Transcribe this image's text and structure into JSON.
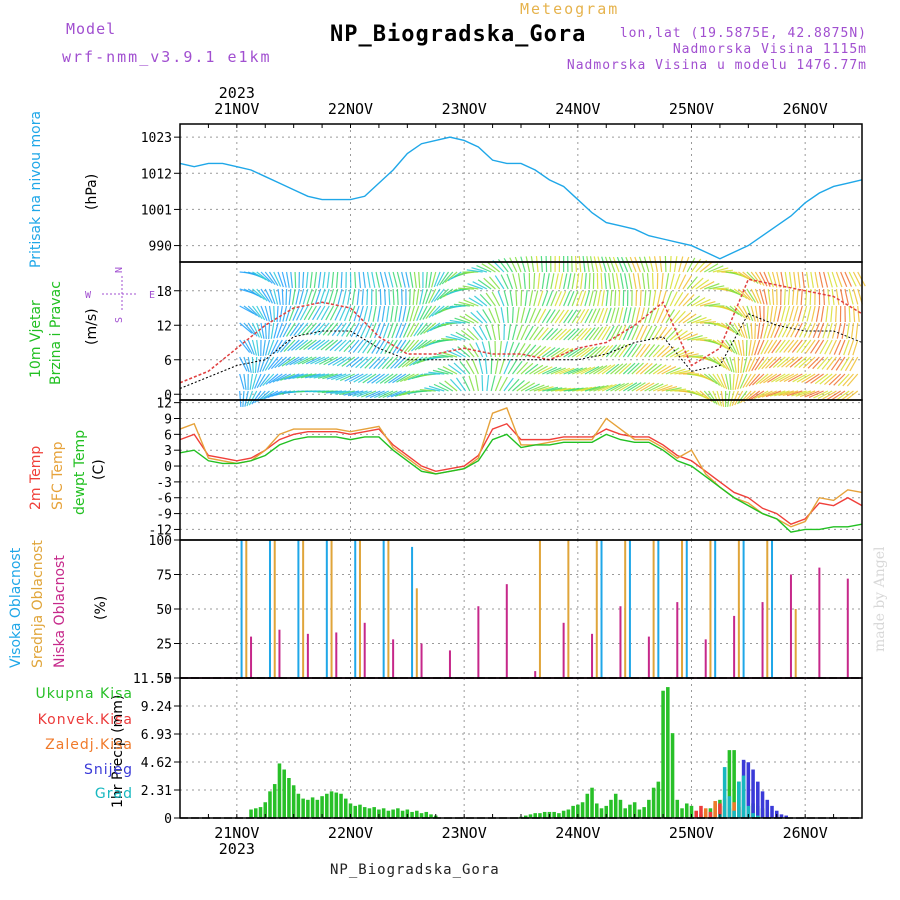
{
  "header": {
    "model_label": "Model",
    "model_version": "wrf-nmm_v3.9.1  e1km",
    "title": "NP_Biogradska_Gora",
    "meteogram": "Meteogram",
    "lonlat": "lon,lat (19.5875E, 42.8875N)",
    "altitude": "Nadmorska Visina 1115m",
    "model_altitude": "Nadmorska Visina u modelu 1476.77m"
  },
  "footer": {
    "station": "NP_Biogradska_Gora"
  },
  "credit": "made by Angel",
  "time_axis": {
    "year": "2023",
    "days": [
      "21NOV",
      "22NOV",
      "23NOV",
      "24NOV",
      "25NOV",
      "26NOV"
    ],
    "range_hours": [
      -12,
      132
    ]
  },
  "colors": {
    "pressure": "#1fa7e8",
    "temp_2m": "#f0403a",
    "temp_sfc": "#e6a23a",
    "dewpt": "#22c022",
    "cloud_high": "#1fa7e8",
    "cloud_mid": "#e0a53a",
    "cloud_low": "#c6288a",
    "precip_total": "#28c028",
    "precip_conv": "#ec3b3b",
    "precip_frozen": "#f07a2a",
    "precip_snow": "#3a3ad8",
    "precip_grad": "#18b8c0"
  },
  "chart_data": [
    {
      "type": "line",
      "panel": "pressure",
      "ylabel": [
        "Pritisak na nivou mora",
        "(hPa)"
      ],
      "yticks": [
        990,
        1001,
        1012,
        1023
      ],
      "ylim": [
        985,
        1027
      ],
      "grid": true,
      "series": [
        {
          "x": [
            -12,
            -9,
            -6,
            -3,
            0,
            3,
            6,
            9,
            12,
            15,
            18,
            21,
            24,
            27,
            30,
            33,
            36,
            39,
            42,
            45,
            48,
            51,
            54,
            57,
            60,
            63,
            66,
            69,
            72,
            75,
            78,
            81,
            84,
            87,
            90,
            93,
            96,
            99,
            102,
            105,
            108,
            111,
            114,
            117,
            120,
            123,
            126,
            129,
            132
          ],
          "values": [
            1015,
            1014,
            1015,
            1015,
            1014,
            1013,
            1011,
            1009,
            1007,
            1005,
            1004,
            1004,
            1004,
            1005,
            1009,
            1013,
            1018,
            1021,
            1022,
            1023,
            1022,
            1020,
            1016,
            1015,
            1015,
            1013,
            1010,
            1008,
            1004,
            1000,
            997,
            996,
            995,
            993,
            992,
            991,
            990,
            988,
            986,
            988,
            990,
            993,
            996,
            999,
            1003,
            1006,
            1008,
            1009,
            1010
          ]
        }
      ]
    },
    {
      "type": "line",
      "panel": "wind",
      "ylabel": [
        "10m Vjetar",
        "Brzina i Pravac",
        "(m/s)"
      ],
      "yticks": [
        0,
        6,
        12,
        18
      ],
      "ylim": [
        -1,
        23
      ],
      "grid": true,
      "compass": {
        "n": "N",
        "s": "S",
        "e": "E",
        "w": "W"
      },
      "series": [
        {
          "name": "speed",
          "x": [
            -12,
            -6,
            0,
            6,
            12,
            18,
            24,
            30,
            36,
            42,
            48,
            54,
            60,
            66,
            72,
            78,
            84,
            90,
            96,
            102,
            108,
            114,
            120,
            126,
            132
          ],
          "values": [
            1,
            3,
            5,
            6,
            10,
            11,
            11,
            8,
            6,
            6,
            6,
            6,
            6,
            6,
            6,
            7,
            9,
            10,
            4,
            5,
            14,
            12,
            11,
            11,
            9
          ]
        },
        {
          "name": "gust",
          "x": [
            -12,
            -6,
            0,
            6,
            12,
            18,
            24,
            30,
            36,
            42,
            48,
            54,
            60,
            66,
            72,
            78,
            84,
            90,
            96,
            102,
            108,
            114,
            120,
            126,
            132
          ],
          "values": [
            2,
            4,
            8,
            12,
            15,
            16,
            15,
            10,
            7,
            7,
            8,
            7,
            7,
            6,
            8,
            9,
            12,
            16,
            5,
            8,
            20,
            19,
            18,
            17,
            14
          ]
        }
      ]
    },
    {
      "type": "line",
      "panel": "temperature",
      "ylabel": [
        "2m Temp",
        "SFC Temp",
        "dewpt Temp",
        "(C)"
      ],
      "yticks": [
        -12,
        -9,
        -6,
        -3,
        0,
        3,
        6,
        9,
        12
      ],
      "ylim": [
        -14,
        12.5
      ],
      "grid": true,
      "series": [
        {
          "name": "2m Temp",
          "x": [
            -12,
            -9,
            -6,
            -3,
            0,
            3,
            6,
            9,
            12,
            15,
            18,
            21,
            24,
            27,
            30,
            33,
            36,
            39,
            42,
            45,
            48,
            51,
            54,
            57,
            60,
            63,
            66,
            69,
            72,
            75,
            78,
            81,
            84,
            87,
            90,
            93,
            96,
            99,
            102,
            105,
            108,
            111,
            114,
            117,
            120,
            123,
            126,
            129,
            132
          ],
          "values": [
            5,
            6,
            2,
            1.5,
            1,
            1.5,
            3,
            5,
            6,
            6.5,
            6.5,
            6.5,
            6,
            6.5,
            7,
            4,
            2,
            0,
            -1,
            -0.5,
            0,
            2,
            7,
            8,
            5,
            5,
            5,
            5.5,
            5.5,
            5.5,
            7,
            6,
            5.5,
            5.5,
            4,
            2,
            1,
            -1,
            -3,
            -5,
            -6,
            -8,
            -9,
            -11,
            -10,
            -7,
            -7.5,
            -6,
            -7.5
          ]
        },
        {
          "name": "SFC Temp",
          "x": [
            -12,
            -9,
            -6,
            -3,
            0,
            3,
            6,
            9,
            12,
            15,
            18,
            21,
            24,
            27,
            30,
            33,
            36,
            39,
            42,
            45,
            48,
            51,
            54,
            57,
            60,
            63,
            66,
            69,
            72,
            75,
            78,
            81,
            84,
            87,
            90,
            93,
            96,
            99,
            102,
            105,
            108,
            111,
            114,
            117,
            120,
            123,
            126,
            129,
            132
          ],
          "values": [
            7,
            8,
            1.5,
            1,
            0.5,
            1,
            3,
            6,
            7,
            7,
            7,
            7,
            6.5,
            7,
            7.5,
            3.5,
            1.5,
            -0.5,
            -1.5,
            -1,
            -0.5,
            1.5,
            10,
            11,
            4,
            4,
            4.5,
            5,
            5,
            5,
            9,
            7,
            5,
            5,
            3.5,
            1.5,
            3,
            -1.5,
            -4,
            -6,
            -7,
            -9,
            -10,
            -11.5,
            -10.5,
            -6,
            -6.5,
            -4.5,
            -5
          ]
        },
        {
          "name": "dewpt Temp",
          "x": [
            -12,
            -9,
            -6,
            -3,
            0,
            3,
            6,
            9,
            12,
            15,
            18,
            21,
            24,
            27,
            30,
            33,
            36,
            39,
            42,
            45,
            48,
            51,
            54,
            57,
            60,
            63,
            66,
            69,
            72,
            75,
            78,
            81,
            84,
            87,
            90,
            93,
            96,
            99,
            102,
            105,
            108,
            111,
            114,
            117,
            120,
            123,
            126,
            129,
            132
          ],
          "values": [
            2.5,
            3,
            1,
            0.5,
            0.5,
            1,
            2,
            4,
            5,
            5.5,
            5.5,
            5.5,
            5,
            5.5,
            5.5,
            3,
            1,
            -1,
            -1.5,
            -1,
            -0.5,
            1,
            5,
            6,
            3.5,
            4,
            4,
            4.5,
            4.5,
            4.5,
            6,
            5,
            4.5,
            4.5,
            3,
            1,
            0,
            -2,
            -4,
            -6,
            -7.5,
            -9,
            -10,
            -12.5,
            -12,
            -12,
            -11.5,
            -11.5,
            -11
          ]
        }
      ]
    },
    {
      "type": "bar",
      "panel": "cloud",
      "ylabel": [
        "Visoka Oblacnost",
        "Srednja Oblacnost",
        "Niska Oblacnost",
        "(%)"
      ],
      "yticks": [
        0,
        25,
        50,
        75,
        100
      ],
      "ylim": [
        0,
        100
      ],
      "grid": true,
      "series": [
        {
          "name": "Visoka Oblacnost",
          "x": [
            1,
            7,
            13,
            19,
            25,
            31,
            37,
            77,
            83,
            89,
            95,
            101,
            107,
            113
          ],
          "values": [
            100,
            100,
            100,
            100,
            100,
            100,
            95,
            100,
            100,
            100,
            100,
            100,
            100,
            100
          ]
        },
        {
          "name": "Srednja Oblacnost",
          "x": [
            2,
            8,
            14,
            20,
            26,
            32,
            38,
            64,
            70,
            76,
            82,
            88,
            94,
            100,
            106,
            112,
            118
          ],
          "values": [
            100,
            100,
            100,
            100,
            100,
            100,
            65,
            100,
            100,
            100,
            100,
            100,
            100,
            100,
            100,
            100,
            50
          ]
        },
        {
          "name": "Niska Oblacnost",
          "x": [
            3,
            9,
            15,
            21,
            27,
            33,
            39,
            45,
            51,
            57,
            63,
            69,
            75,
            81,
            87,
            93,
            99,
            105,
            111,
            117,
            123,
            129
          ],
          "values": [
            30,
            35,
            32,
            33,
            40,
            28,
            25,
            20,
            52,
            68,
            5,
            40,
            32,
            52,
            30,
            55,
            28,
            45,
            55,
            75,
            80,
            72
          ]
        }
      ]
    },
    {
      "type": "bar",
      "panel": "precip",
      "ylabel": [
        "1hr Precip (mm)"
      ],
      "yticks": [
        0,
        2.31,
        4.62,
        6.93,
        9.24,
        11.55
      ],
      "ylim": [
        0,
        11.55
      ],
      "grid": true,
      "legend": [
        "Ukupna Kisa",
        "Konvek.Kisa",
        "Zaledj.Kisa",
        "Snijeg",
        "Grad"
      ],
      "series": [
        {
          "name": "Ukupna Kisa",
          "x": [
            3,
            4,
            5,
            6,
            7,
            8,
            9,
            10,
            11,
            12,
            13,
            14,
            15,
            16,
            17,
            18,
            19,
            20,
            21,
            22,
            23,
            24,
            25,
            26,
            27,
            28,
            29,
            30,
            31,
            32,
            33,
            34,
            35,
            36,
            37,
            38,
            39,
            40,
            41,
            42,
            43,
            44,
            45,
            46,
            47,
            48,
            49,
            50,
            51,
            52,
            53,
            54,
            55,
            56,
            57,
            58,
            59,
            60,
            61,
            62,
            63,
            64,
            65,
            66,
            67,
            68,
            69,
            70,
            71,
            72,
            73,
            74,
            75,
            76,
            77,
            78,
            79,
            80,
            81,
            82,
            83,
            84,
            85,
            86,
            87,
            88,
            89,
            90,
            91,
            92,
            93,
            94,
            95,
            96,
            97,
            98,
            99,
            100,
            101,
            102,
            103,
            104,
            105,
            106,
            107,
            108,
            109,
            110,
            111,
            112
          ],
          "values": [
            0.7,
            0.8,
            0.9,
            1.3,
            2.2,
            2.8,
            4.5,
            4.0,
            3.3,
            2.7,
            2.0,
            1.6,
            1.5,
            1.7,
            1.5,
            1.8,
            2.0,
            2.2,
            2.1,
            2.0,
            1.6,
            1.2,
            1.0,
            1.1,
            0.9,
            0.8,
            0.9,
            0.7,
            0.8,
            0.6,
            0.7,
            0.8,
            0.6,
            0.7,
            0.5,
            0.6,
            0.4,
            0.5,
            0.3,
            0.2,
            0,
            0,
            0,
            0,
            0,
            0,
            0,
            0,
            0,
            0,
            0,
            0,
            0,
            0,
            0,
            0,
            0,
            0.1,
            0.2,
            0.3,
            0.4,
            0.4,
            0.5,
            0.5,
            0.5,
            0.4,
            0.6,
            0.7,
            1.0,
            1.1,
            1.3,
            2.0,
            2.5,
            1.2,
            0.8,
            1.0,
            1.5,
            2.0,
            1.5,
            0.8,
            1.1,
            1.3,
            0.7,
            0.9,
            1.5,
            2.5,
            3.0,
            10.5,
            10.8,
            7.0,
            1.5,
            0.8,
            1.2,
            1.0,
            0.5,
            0.3,
            0.5,
            0.8,
            1.2,
            1.5,
            1.0,
            5.6,
            5.6,
            3.0,
            1.5,
            1.0,
            1.2,
            1.0,
            0.8,
            0.5
          ]
        },
        {
          "name": "Konvek.Kisa",
          "x": [
            97,
            98,
            100,
            102,
            103,
            104,
            106,
            107
          ],
          "values": [
            0.6,
            1.0,
            0.5,
            1.2,
            1.6,
            0.8,
            0.9,
            0.7
          ]
        },
        {
          "name": "Zaledj.Kisa",
          "x": [
            99,
            101,
            103,
            105,
            107,
            108
          ],
          "values": [
            0.8,
            1.4,
            1.0,
            1.3,
            0.6,
            0.5
          ]
        },
        {
          "name": "Snijeg",
          "x": [
            107,
            108,
            109,
            110,
            111,
            112,
            113,
            114,
            115,
            116
          ],
          "values": [
            4.8,
            4.6,
            4.0,
            3.0,
            2.2,
            1.5,
            1.0,
            0.6,
            0.3,
            0.2
          ]
        },
        {
          "name": "Grad",
          "x": [
            102,
            103,
            104,
            105,
            106,
            107,
            108,
            109,
            110
          ],
          "values": [
            0.3,
            4.2,
            1.8,
            0.6,
            3.0,
            3.5,
            1.0,
            0.4,
            0.2
          ]
        }
      ]
    }
  ]
}
